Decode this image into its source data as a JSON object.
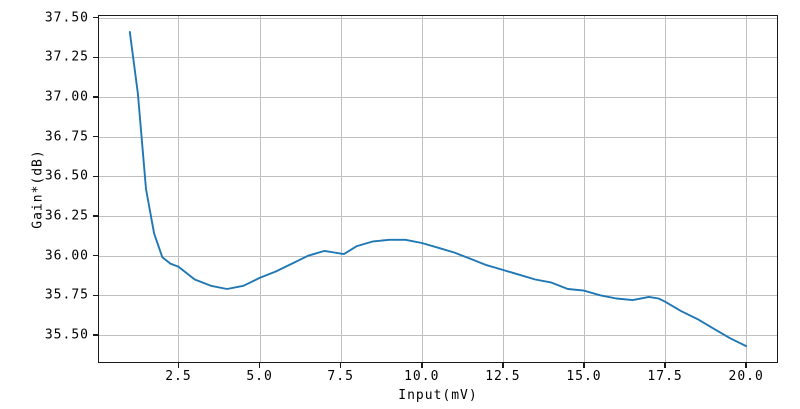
{
  "chart_data": {
    "type": "line",
    "xlabel": "Input(mV)",
    "ylabel": "Gain*(dB)",
    "xlim": [
      0.05,
      20.95
    ],
    "ylim": [
      35.33,
      37.51
    ],
    "grid": true,
    "legend_position": "none",
    "line_color": "#1f77b4",
    "grid_color": "#c0c0c0",
    "spine_color": "#1a1a1a",
    "background_color": "#ffffff",
    "xticks": {
      "values": [
        2.5,
        5.0,
        7.5,
        10.0,
        12.5,
        15.0,
        17.5,
        20.0
      ],
      "labels": [
        "2.5",
        "5.0",
        "7.5",
        "10.0",
        "12.5",
        "15.0",
        "17.5",
        "20.0"
      ]
    },
    "yticks": {
      "values": [
        35.5,
        35.75,
        36.0,
        36.25,
        36.5,
        36.75,
        37.0,
        37.25,
        37.5
      ],
      "labels": [
        "35.50",
        "35.75",
        "36.00",
        "36.25",
        "36.50",
        "36.75",
        "37.00",
        "37.25",
        "37.50"
      ]
    },
    "series": [
      {
        "x": [
          1.0,
          1.25,
          1.5,
          1.75,
          2.0,
          2.25,
          2.5,
          3.0,
          3.5,
          4.0,
          4.5,
          5.0,
          5.5,
          6.0,
          6.5,
          7.0,
          7.3,
          7.6,
          8.0,
          8.5,
          9.0,
          9.5,
          10.0,
          10.5,
          11.0,
          11.5,
          12.0,
          12.5,
          13.0,
          13.5,
          14.0,
          14.5,
          15.0,
          15.5,
          16.0,
          16.5,
          17.0,
          17.3,
          17.5,
          18.0,
          18.5,
          19.0,
          19.5,
          20.0
        ],
        "y": [
          37.41,
          37.02,
          36.42,
          36.14,
          35.99,
          35.95,
          35.93,
          35.85,
          35.81,
          35.79,
          35.81,
          35.86,
          35.9,
          35.95,
          36.0,
          36.03,
          36.02,
          36.01,
          36.06,
          36.09,
          36.1,
          36.1,
          36.08,
          36.05,
          36.02,
          35.98,
          35.94,
          35.91,
          35.88,
          35.85,
          35.83,
          35.79,
          35.78,
          35.75,
          35.73,
          35.72,
          35.74,
          35.73,
          35.71,
          35.65,
          35.6,
          35.54,
          35.48,
          35.43
        ]
      }
    ]
  }
}
